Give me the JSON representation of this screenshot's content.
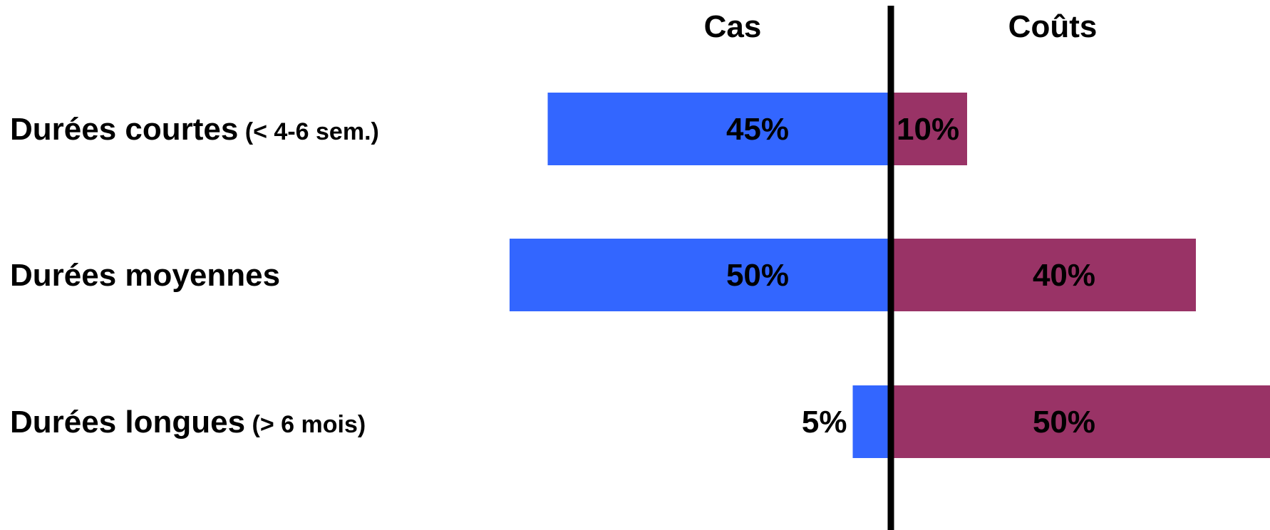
{
  "chart_data": {
    "type": "bar",
    "subtype": "diverging-horizontal-bar",
    "categories": [
      {
        "main": "Durées courtes",
        "sub": "(< 4-6 sem.)"
      },
      {
        "main": "Durées moyennes",
        "sub": ""
      },
      {
        "main": "Durées longues",
        "sub": "(> 6 mois)"
      }
    ],
    "series": [
      {
        "name": "Cas",
        "side": "left",
        "color": "#3366ff",
        "values": [
          45,
          50,
          5
        ],
        "labels": [
          "45%",
          "50%",
          "5%"
        ]
      },
      {
        "name": "Coûts",
        "side": "right",
        "color": "#993366",
        "values": [
          10,
          40,
          50
        ],
        "labels": [
          "10%",
          "40%",
          "50%"
        ]
      }
    ],
    "unit": "%",
    "grid": false,
    "legend": "none"
  }
}
